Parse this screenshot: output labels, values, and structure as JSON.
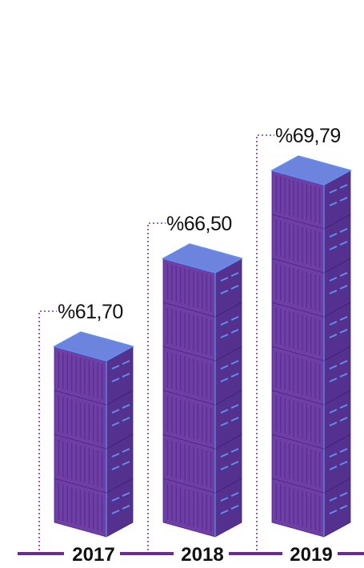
{
  "chart_data": {
    "type": "bar",
    "categories": [
      "2017",
      "2018",
      "2019"
    ],
    "values": [
      61.7,
      66.5,
      69.79
    ],
    "value_labels": [
      "%61,70",
      "%66,50",
      "%69,79"
    ],
    "stack_counts": [
      4,
      6,
      8
    ],
    "bar_style": "stacked shipping containers",
    "grid": false,
    "legend": "none"
  },
  "colors": {
    "container_front": "#6f3fa5",
    "container_side": "#55318f",
    "container_top": "#6d84de",
    "edge_highlight": "#5f8ff0",
    "axis_line": "#6a2e8c",
    "leader_line": "#7a3d95",
    "text": "#111111"
  }
}
